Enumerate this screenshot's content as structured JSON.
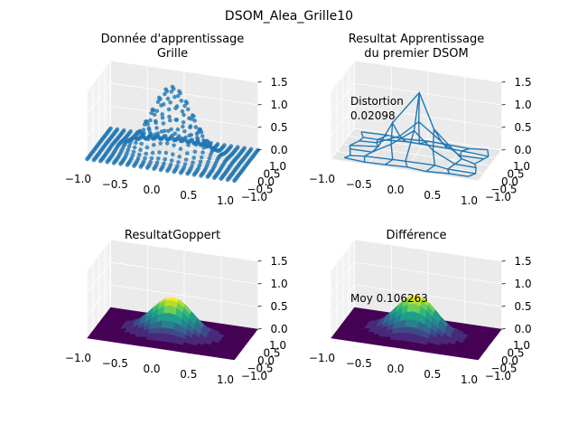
{
  "figure": {
    "suptitle": "DSOM_Alea_Grille10"
  },
  "chart_data": [
    {
      "type": "surface",
      "title_lines": [
        "Donnée d'apprentissage",
        "Grille"
      ],
      "render": "scatter-points",
      "color": "#1f77b4",
      "xlim": [
        -1,
        1
      ],
      "ylim": [
        -1,
        1
      ],
      "zlim": [
        0,
        1.5
      ],
      "x_ticks": [
        "−1.0",
        "−0.5",
        "0.0",
        "0.5",
        "1.0"
      ],
      "y_ticks": [
        "−1.0",
        "−0.5",
        "0.0",
        "0.5",
        "1.0"
      ],
      "z_ticks": [
        "0.0",
        "0.5",
        "1.0",
        "1.5"
      ],
      "peak": {
        "x": 0.0,
        "y": 0.0,
        "z": 1.5
      },
      "annotation": ""
    },
    {
      "type": "wireframe",
      "title_lines": [
        "Resultat Apprentissage",
        "du premier DSOM"
      ],
      "render": "wire-lines",
      "color": "#1f77b4",
      "xlim": [
        -1,
        1
      ],
      "ylim": [
        -1,
        1
      ],
      "zlim": [
        0,
        1.5
      ],
      "x_ticks": [
        "−1.0",
        "−0.5",
        "0.0",
        "0.5",
        "1.0"
      ],
      "y_ticks": [
        "−1.0",
        "−0.5",
        "0.0",
        "0.5",
        "1.0"
      ],
      "z_ticks": [
        "0.0",
        "0.5",
        "1.0",
        "1.5"
      ],
      "peak": {
        "x": 0.0,
        "y": 0.0,
        "z": 1.4
      },
      "annotation": "Distortion\n0.02098"
    },
    {
      "type": "surface",
      "title_lines": [
        "ResultatGoppert"
      ],
      "render": "viridis-surface",
      "colormap": "viridis",
      "xlim": [
        -1,
        1
      ],
      "ylim": [
        -1,
        1
      ],
      "zlim": [
        0,
        1.5
      ],
      "x_ticks": [
        "−1.0",
        "−0.5",
        "0.0",
        "0.5",
        "1.0"
      ],
      "y_ticks": [
        "−1.0",
        "−0.5",
        "0.0",
        "0.5",
        "1.0"
      ],
      "z_ticks": [
        "0.0",
        "0.5",
        "1.0",
        "1.5"
      ],
      "peak": {
        "x": 0.0,
        "y": 0.0,
        "z": 0.8
      },
      "annotation": ""
    },
    {
      "type": "surface",
      "title_lines": [
        "Différence"
      ],
      "render": "viridis-surface",
      "colormap": "viridis",
      "xlim": [
        -1,
        1
      ],
      "ylim": [
        -1,
        1
      ],
      "zlim": [
        0,
        1.5
      ],
      "x_ticks": [
        "−1.0",
        "−0.5",
        "0.0",
        "0.5",
        "1.0"
      ],
      "y_ticks": [
        "−1.0",
        "−0.5",
        "0.0",
        "0.5",
        "1.0"
      ],
      "z_ticks": [
        "0.0",
        "0.5",
        "1.0",
        "1.5"
      ],
      "peak": {
        "x": 0.0,
        "y": 0.0,
        "z": 0.85
      },
      "annotation": "Moy 0.106263"
    }
  ]
}
